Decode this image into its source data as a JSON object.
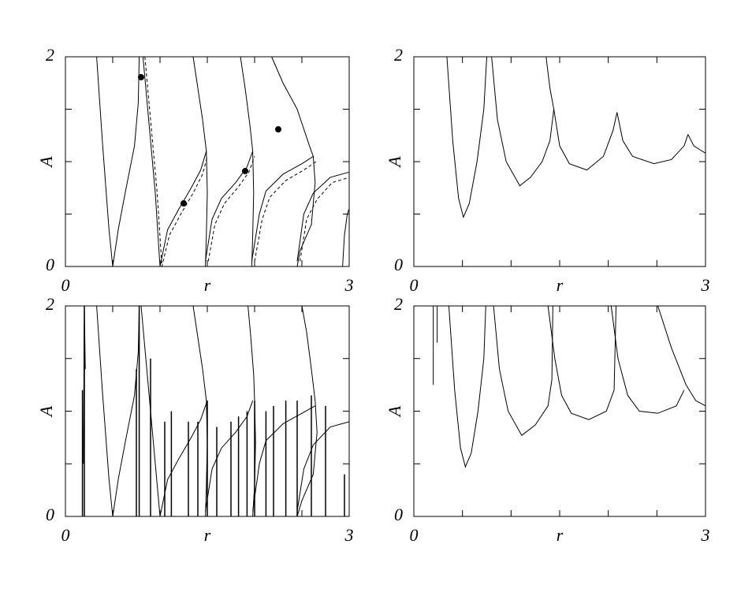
{
  "chart_data": [
    {
      "type": "line",
      "xlabel": "r",
      "ylabel": "A",
      "xlim": [
        0,
        3
      ],
      "ylim": [
        0,
        2
      ],
      "xticks": [
        0,
        3
      ],
      "yticks": [
        0,
        2
      ],
      "minor_xticks": [
        0.5,
        1,
        1.5,
        2,
        2.5
      ],
      "minor_yticks": [
        0.5,
        1,
        1.5
      ],
      "series": [
        {
          "color": "#000",
          "x": [
            0.33,
            0.39,
            0.46,
            0.5,
            0.56,
            0.64,
            0.73,
            0.77,
            0.78
          ],
          "values": [
            2,
            1.2,
            0.36,
            0,
            0.36,
            0.74,
            1.15,
            1.56,
            2
          ]
        },
        {
          "color": "#000",
          "x": [
            0.82,
            0.88,
            0.95,
            1.0,
            1.08,
            1.2,
            1.33,
            1.43,
            1.49
          ],
          "values": [
            2,
            1.4,
            0.7,
            0,
            0.35,
            0.55,
            0.75,
            0.92,
            1.1
          ]
        },
        {
          "color": "#000",
          "x": [
            1.35,
            1.4,
            1.45,
            1.49,
            1.5,
            1.49,
            1.48
          ],
          "values": [
            2,
            1.7,
            1.4,
            1.1,
            0.7,
            0.3,
            0
          ]
        },
        {
          "color": "#000",
          "x": [
            1.48,
            1.55,
            1.65,
            1.8,
            1.92,
            1.98
          ],
          "values": [
            0.05,
            0.45,
            0.65,
            0.8,
            0.95,
            1.1
          ]
        },
        {
          "color": "#000",
          "x": [
            1.85,
            1.9,
            1.95,
            1.98,
            1.99,
            1.98,
            1.97
          ],
          "values": [
            2,
            1.7,
            1.35,
            1.1,
            0.7,
            0.3,
            0
          ]
        },
        {
          "color": "#000",
          "x": [
            1.97,
            2.05,
            2.12,
            2.3,
            2.5,
            2.62
          ],
          "values": [
            0.05,
            0.5,
            0.72,
            0.88,
            0.98,
            1.05
          ]
        },
        {
          "color": "#000",
          "x": [
            2.18,
            2.3,
            2.45,
            2.58,
            2.62,
            2.64,
            2.6,
            2.48,
            2.45
          ],
          "values": [
            2,
            1.75,
            1.5,
            1.15,
            1.05,
            0.8,
            0.4,
            0.15,
            0
          ]
        },
        {
          "color": "#000",
          "x": [
            2.45,
            2.52,
            2.62,
            2.8,
            3
          ],
          "values": [
            0.05,
            0.5,
            0.7,
            0.85,
            0.9
          ]
        },
        {
          "color": "#000",
          "x": [
            2.93,
            2.95,
            2.98,
            3
          ],
          "values": [
            0,
            0.3,
            0.5,
            0.55
          ]
        },
        {
          "color": "#000",
          "dash": true,
          "x": [
            0.84,
            0.9,
            0.97,
            1.02,
            1.1,
            1.22,
            1.35,
            1.45,
            1.5
          ],
          "values": [
            2,
            1.4,
            0.7,
            0,
            0.3,
            0.5,
            0.7,
            0.88,
            1.05
          ]
        },
        {
          "color": "#000",
          "dash": true,
          "x": [
            1.51,
            1.58,
            1.68,
            1.82,
            1.94,
            2.0
          ],
          "values": [
            0.05,
            0.4,
            0.6,
            0.75,
            0.9,
            1.05
          ]
        },
        {
          "color": "#000",
          "dash": true,
          "x": [
            2.0,
            2.08,
            2.16,
            2.33,
            2.52,
            2.65
          ],
          "values": [
            0.05,
            0.45,
            0.66,
            0.82,
            0.92,
            1.0
          ]
        },
        {
          "color": "#000",
          "dash": true,
          "x": [
            2.48,
            2.55,
            2.66,
            2.82,
            3
          ],
          "values": [
            0.05,
            0.45,
            0.64,
            0.8,
            0.85
          ]
        }
      ],
      "points": {
        "color": "#000",
        "x": [
          0.8,
          1.25,
          1.9,
          2.25
        ],
        "values": [
          1.805,
          0.602,
          0.91,
          1.308
        ]
      }
    },
    {
      "type": "line",
      "xlabel": "r",
      "ylabel": "A",
      "xlim": [
        0,
        3
      ],
      "ylim": [
        0,
        2
      ],
      "xticks": [
        0,
        3
      ],
      "yticks": [
        0,
        2
      ],
      "minor_xticks": [
        0.5,
        1,
        1.5,
        2,
        2.5
      ],
      "minor_yticks": [
        0.5,
        1,
        1.5
      ],
      "series": [
        {
          "color": "#000",
          "x": [
            0.34,
            0.4,
            0.46,
            0.51,
            0.57,
            0.65,
            0.72,
            0.75
          ],
          "values": [
            2,
            1.2,
            0.65,
            0.47,
            0.6,
            1.0,
            1.5,
            2
          ]
        },
        {
          "color": "#000",
          "x": [
            0.8,
            0.86,
            0.95,
            1.09,
            1.2,
            1.32,
            1.4,
            1.44
          ],
          "values": [
            2,
            1.4,
            1.0,
            0.77,
            0.85,
            1.0,
            1.2,
            1.5
          ]
        },
        {
          "color": "#000",
          "x": [
            1.36,
            1.4,
            1.44,
            1.5,
            1.6,
            1.78,
            1.95,
            2.05,
            2.09
          ],
          "values": [
            2,
            1.7,
            1.5,
            1.15,
            0.98,
            0.92,
            1.05,
            1.3,
            1.47
          ]
        },
        {
          "color": "#000",
          "x": [
            2.09,
            2.15,
            2.25,
            2.47,
            2.65,
            2.78,
            2.82
          ],
          "values": [
            1.47,
            1.2,
            1.05,
            0.98,
            1.02,
            1.15,
            1.26
          ]
        },
        {
          "color": "#000",
          "x": [
            2.82,
            2.88,
            3
          ],
          "values": [
            1.26,
            1.15,
            1.08
          ]
        }
      ]
    },
    {
      "type": "line",
      "xlabel": "r",
      "ylabel": "A",
      "xlim": [
        0,
        3
      ],
      "ylim": [
        0,
        2
      ],
      "xticks": [
        0,
        3
      ],
      "yticks": [
        0,
        2
      ],
      "minor_xticks": [
        0.5,
        1,
        1.5,
        2,
        2.5
      ],
      "minor_yticks": [
        0.5,
        1,
        1.5
      ],
      "series": [
        {
          "color": "#000",
          "x": [
            0.19,
            0.2,
            0.21
          ],
          "values": [
            0.5,
            2,
            1.4
          ]
        },
        {
          "color": "#000",
          "x": [
            0.33,
            0.39,
            0.46,
            0.5,
            0.56,
            0.64,
            0.73,
            0.77,
            0.78
          ],
          "values": [
            2,
            1.2,
            0.36,
            0,
            0.36,
            0.74,
            1.15,
            1.56,
            2
          ]
        },
        {
          "color": "#000",
          "x": [
            0.8,
            0.86,
            0.93,
            1.0,
            1.08,
            1.2,
            1.33,
            1.43,
            1.5
          ],
          "values": [
            2,
            1.4,
            0.7,
            0,
            0.35,
            0.55,
            0.75,
            0.92,
            1.1
          ]
        },
        {
          "color": "#000",
          "x": [
            1.35,
            1.4,
            1.45,
            1.49,
            1.5,
            1.49,
            1.48
          ],
          "values": [
            2,
            1.7,
            1.4,
            1.1,
            0.7,
            0.3,
            0
          ]
        },
        {
          "color": "#000",
          "x": [
            1.48,
            1.55,
            1.65,
            1.8,
            1.92,
            1.98
          ],
          "values": [
            0.05,
            0.45,
            0.65,
            0.8,
            0.95,
            1.1
          ]
        },
        {
          "color": "#000",
          "x": [
            1.93,
            1.96,
            1.99,
            2.0,
            2.01,
            2.0,
            1.98
          ],
          "values": [
            2,
            1.7,
            1.35,
            1.1,
            0.7,
            0.3,
            0
          ]
        },
        {
          "color": "#000",
          "x": [
            1.98,
            2.05,
            2.12,
            2.3,
            2.5,
            2.64
          ],
          "values": [
            0.05,
            0.5,
            0.72,
            0.88,
            0.98,
            1.05
          ]
        },
        {
          "color": "#000",
          "x": [
            2.5,
            2.55,
            2.6,
            2.64,
            2.66,
            2.62,
            2.5,
            2.45
          ],
          "values": [
            2,
            1.75,
            1.4,
            1.1,
            0.8,
            0.4,
            0.15,
            0
          ]
        },
        {
          "color": "#000",
          "x": [
            2.45,
            2.52,
            2.62,
            2.8,
            3
          ],
          "values": [
            0.05,
            0.45,
            0.68,
            0.85,
            0.9
          ]
        }
      ],
      "vlines": {
        "color": "#000",
        "x": [
          0.18,
          0.2,
          0.75,
          0.78,
          0.9,
          1.05,
          1.12,
          1.3,
          1.4,
          1.5,
          1.6,
          1.75,
          1.83,
          1.92,
          2.0,
          2.12,
          2.2,
          2.33,
          2.45,
          2.6,
          2.75,
          2.95
        ],
        "values": [
          1.2,
          2,
          1.4,
          2,
          1.5,
          0.9,
          1.0,
          0.9,
          0.9,
          1.1,
          0.85,
          0.9,
          0.95,
          1.0,
          1.1,
          1.0,
          1.05,
          1.1,
          1.1,
          1.15,
          1.05,
          0.4
        ]
      }
    },
    {
      "type": "line",
      "xlabel": "r",
      "ylabel": "A",
      "xlim": [
        0,
        3
      ],
      "ylim": [
        0,
        2
      ],
      "xticks": [
        0,
        3
      ],
      "yticks": [
        0,
        2
      ],
      "minor_xticks": [
        0.5,
        1,
        1.5,
        2,
        2.5
      ],
      "minor_yticks": [
        0.5,
        1,
        1.5
      ],
      "series": [
        {
          "color": "#000",
          "x": [
            0.2,
            0.2
          ],
          "values": [
            2,
            1.25
          ]
        },
        {
          "color": "#000",
          "x": [
            0.24,
            0.24
          ],
          "values": [
            2,
            1.65
          ]
        },
        {
          "color": "#000",
          "x": [
            0.36,
            0.42,
            0.48,
            0.53,
            0.59,
            0.66,
            0.72,
            0.74
          ],
          "values": [
            2,
            1.2,
            0.65,
            0.47,
            0.6,
            1.0,
            1.5,
            2
          ]
        },
        {
          "color": "#000",
          "x": [
            0.82,
            0.88,
            0.97,
            1.11,
            1.25,
            1.38,
            1.42,
            1.43
          ],
          "values": [
            2,
            1.4,
            1.0,
            0.77,
            0.87,
            1.05,
            1.3,
            2
          ]
        },
        {
          "color": "#000",
          "x": [
            1.38,
            1.45,
            1.52,
            1.62,
            1.8,
            1.98,
            2.06,
            2.08
          ],
          "values": [
            2,
            1.5,
            1.15,
            0.98,
            0.92,
            1.0,
            1.2,
            2
          ]
        },
        {
          "color": "#000",
          "x": [
            2.03,
            2.1,
            2.2,
            2.32,
            2.51,
            2.7,
            2.78
          ],
          "values": [
            2,
            1.5,
            1.15,
            1.0,
            0.98,
            1.05,
            1.2
          ]
        },
        {
          "color": "#000",
          "x": [
            2.51,
            2.65,
            2.8,
            2.9,
            3
          ],
          "values": [
            2,
            1.6,
            1.25,
            1.1,
            1.05
          ]
        }
      ]
    }
  ]
}
